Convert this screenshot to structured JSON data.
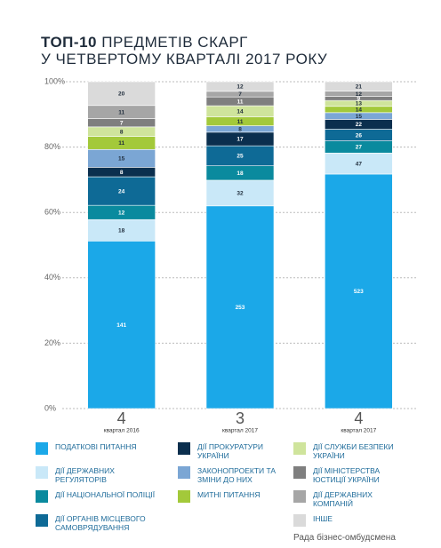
{
  "chart_data": {
    "type": "stacked_bar_100",
    "title_bold": "ТОП-10",
    "title_rest": "ПРЕДМЕТІВ СКАРГ",
    "title_line2": "У ЧЕТВЕРТОМУ КВАРТАЛІ 2017 РОКУ",
    "categories": [
      "4",
      "3",
      "4"
    ],
    "category_sublabels": [
      "квартал 2016",
      "квартал 2017",
      "квартал 2017"
    ],
    "ylim": [
      0,
      100
    ],
    "yticks": [
      {
        "value": 0,
        "label": "0%"
      },
      {
        "value": 20,
        "label": "20%"
      },
      {
        "value": 40,
        "label": "40%"
      },
      {
        "value": 60,
        "label": "60%"
      },
      {
        "value": 80,
        "label": "80%"
      },
      {
        "value": 100,
        "label": "100%"
      }
    ],
    "grid": true,
    "series": [
      {
        "name": "ПОДАТКОВІ ПИТАННЯ",
        "color": "#1ba8e8",
        "values": [
          141,
          253,
          523
        ]
      },
      {
        "name": "ДІЇ ДЕРЖАВНИХ РЕГУЛЯТОРІВ",
        "color": "#c9e8f8",
        "values": [
          18,
          32,
          47
        ]
      },
      {
        "name": "ДІЇ НАЦІОНАЛЬНОЇ ПОЛІЦІЇ",
        "color": "#0a8a9e",
        "values": [
          12,
          18,
          27
        ]
      },
      {
        "name": "ДІЇ ОРГАНІВ МІСЦЕВОГО САМОВРЯДУВАННЯ",
        "color": "#0e6a96",
        "values": [
          24,
          25,
          26
        ]
      },
      {
        "name": "ДІЇ ПРОКУРАТУРИ УКРАЇНИ",
        "color": "#0b2f4e",
        "values": [
          8,
          17,
          22
        ]
      },
      {
        "name": "ЗАКОНОПРОЕКТИ ТА ЗМІНИ ДО НИХ",
        "color": "#7ba6d4",
        "values": [
          15,
          8,
          15
        ]
      },
      {
        "name": "МИТНІ ПИТАННЯ",
        "color": "#a3c93a",
        "values": [
          11,
          11,
          14
        ]
      },
      {
        "name": "ДІЇ СЛУЖБИ БЕЗПЕКИ УКРАЇНИ",
        "color": "#cfe49c",
        "values": [
          8,
          14,
          13
        ]
      },
      {
        "name": "ДІЇ МІНІСТЕРСТВА ЮСТИЦІЇ УКРАЇНИ",
        "color": "#7f7f7f",
        "values": [
          7,
          11,
          9
        ]
      },
      {
        "name": "ДІЇ ДЕРЖАВНИХ КОМПАНІЙ",
        "color": "#a6a6a6",
        "values": [
          11,
          7,
          12
        ]
      },
      {
        "name": "ІНШЕ",
        "color": "#dadada",
        "values": [
          20,
          12,
          21
        ]
      }
    ],
    "source": "Рада бізнес-омбудсмена"
  }
}
